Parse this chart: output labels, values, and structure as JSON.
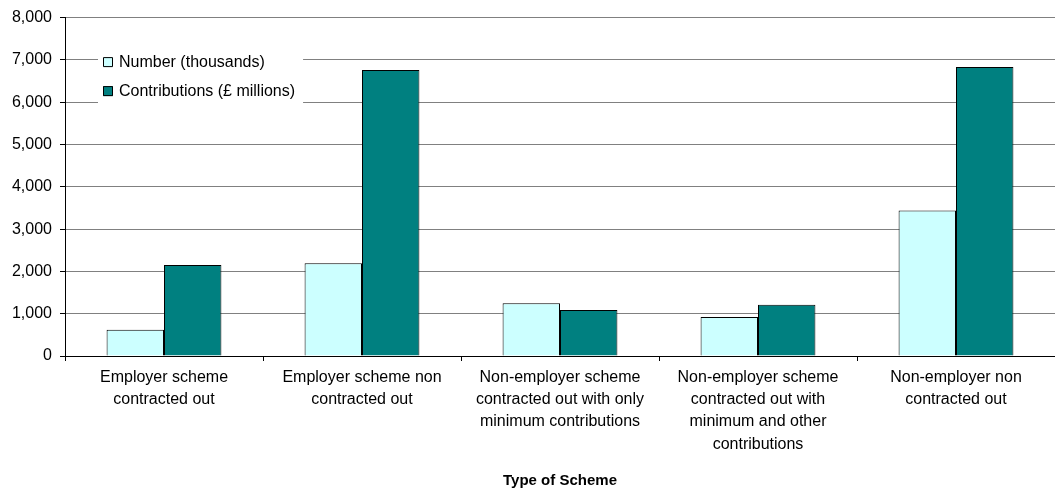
{
  "chart_data": {
    "type": "bar",
    "xlabel": "Type of Scheme",
    "categories": [
      "Employer scheme contracted out",
      "Employer scheme non contracted out",
      "Non-employer scheme contracted out with only minimum contributions",
      "Non-employer scheme contracted out with minimum and other contributions",
      "Non-employer non contracted out"
    ],
    "series": [
      {
        "name": "Number (thousands)",
        "color": "#ccffff",
        "values": [
          620,
          2190,
          1250,
          920,
          3440
        ]
      },
      {
        "name": "Contributions (£ millions)",
        "color": "#008080",
        "values": [
          2150,
          6760,
          1090,
          1210,
          6830
        ]
      }
    ],
    "ylim": [
      0,
      8000
    ],
    "yticks": [
      0,
      {
        "value": 1000,
        "label": "1,000"
      },
      {
        "value": 2000,
        "label": "2,000"
      },
      {
        "value": 3000,
        "label": "3,000"
      },
      {
        "value": 4000,
        "label": "4,000"
      },
      {
        "value": 5000,
        "label": "5,000"
      },
      {
        "value": 6000,
        "label": "6,000"
      },
      {
        "value": 7000,
        "label": "7,000"
      },
      {
        "value": 8000,
        "label": "8,000"
      }
    ],
    "grid": "y",
    "legend": "top left"
  }
}
